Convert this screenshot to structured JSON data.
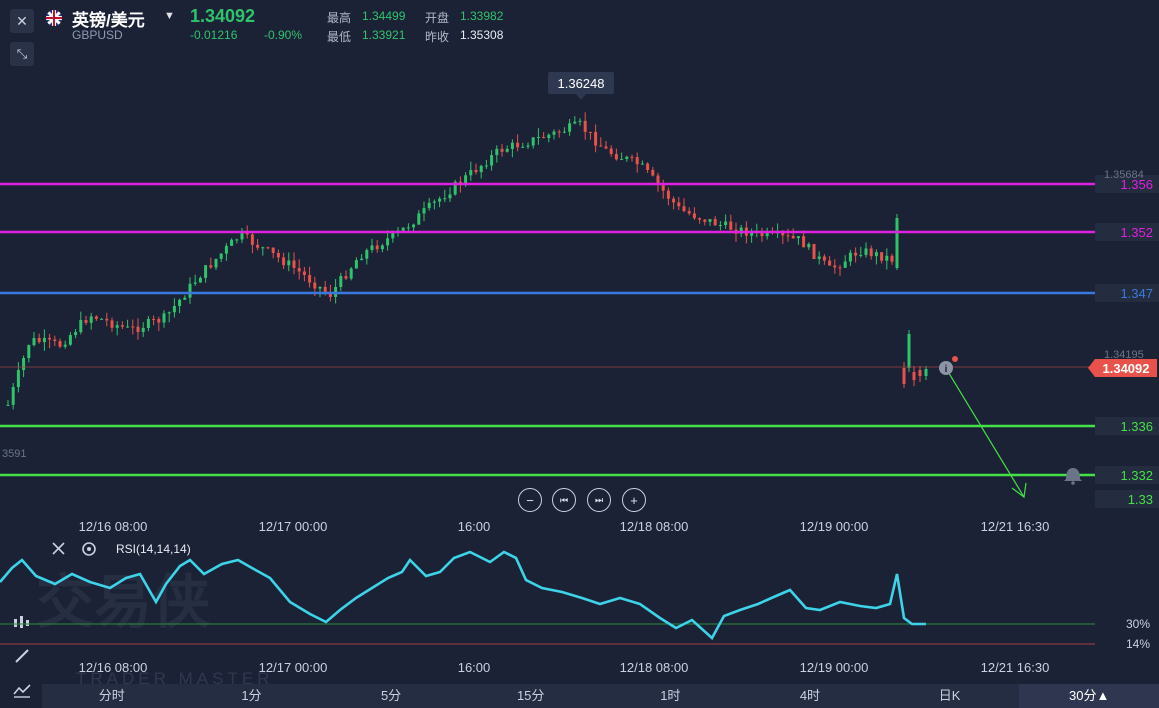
{
  "header": {
    "pair_name": "英镑/美元",
    "pair_code": "GBPUSD",
    "last_price": "1.34092",
    "change": "-0.01216",
    "change_pct": "-0.90%",
    "high_label": "最高",
    "high_value": "1.34499",
    "open_label": "开盘",
    "open_value": "1.33982",
    "low_label": "最低",
    "low_value": "1.33921",
    "prev_close_label": "昨收",
    "prev_close_value": "1.35308"
  },
  "chart": {
    "peak_label": "1.36248",
    "right_axis_faded": [
      "1.35684",
      "1.34195"
    ],
    "left_axis_faded": "3591",
    "current_price_tag": "1.34092",
    "x_labels": [
      "12/16 08:00",
      "12/17 00:00",
      "16:00",
      "12/18 08:00",
      "12/19 00:00",
      "12/21 16:30"
    ]
  },
  "lines": [
    {
      "label": "1.356",
      "color": "#e020e0"
    },
    {
      "label": "1.352",
      "color": "#e020e0"
    },
    {
      "label": "1.347",
      "color": "#3a78e0"
    },
    {
      "label": "1.336",
      "color": "#44e045"
    },
    {
      "label": "1.332",
      "color": "#44e045"
    },
    {
      "label": "1.33",
      "color": "#44e045"
    }
  ],
  "colors": {
    "up": "#2fc46b",
    "down": "#e8524a",
    "rsi": "#3ed3e8",
    "bg": "#1b2236"
  },
  "rsi": {
    "label": "RSI(14,14,14)",
    "level_30": "30%",
    "level_14": "14%",
    "x_labels": [
      "12/16 08:00",
      "12/17 00:00",
      "16:00",
      "12/18 08:00",
      "12/19 00:00",
      "12/21 16:30"
    ]
  },
  "watermark": {
    "cn": "交易侠",
    "en": "TRADER MASTER"
  },
  "timeframes": [
    "分时",
    "1分",
    "5分",
    "15分",
    "1时",
    "4时",
    "日K",
    "30分▲"
  ],
  "icons": [
    "close-icon",
    "collapse-icon",
    "zoom-out-icon",
    "prev-icon",
    "next-icon",
    "zoom-in-icon",
    "bell-icon",
    "info-icon",
    "settings-icon",
    "draw-icon",
    "indicator-icon"
  ]
}
